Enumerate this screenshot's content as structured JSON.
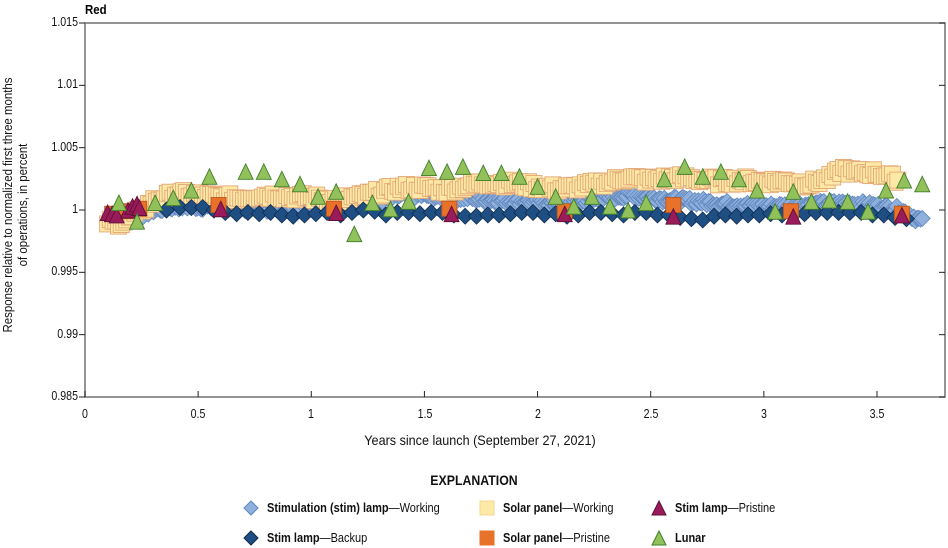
{
  "panel_title": "Red",
  "y_axis": {
    "label": "Response relative to normalized first three months of operations, in percent",
    "label_line1": "Response relative to normalized first three months",
    "label_line2": "of operations, in percent",
    "ticks": [
      "1.015",
      "1.01",
      "1.005",
      "1",
      "0.995",
      "0.99",
      "0.985"
    ]
  },
  "x_axis": {
    "label": "Years since launch (September 27, 2021)",
    "ticks": [
      "0",
      "0.5",
      "1",
      "1.5",
      "2",
      "2.5",
      "3",
      "3.5"
    ]
  },
  "legend": {
    "title": "EXPLANATION",
    "items": [
      {
        "bold": "Stimulation (stim) lamp",
        "rest": "—Working",
        "marker": "diamond",
        "color": "#8fb0dc",
        "stroke": "#5f86bd"
      },
      {
        "bold": "Stim lamp",
        "rest": "—Backup",
        "marker": "diamond",
        "color": "#1f4e82",
        "stroke": "#0d2a4c"
      },
      {
        "bold": "Solar panel",
        "rest": "—Working",
        "marker": "square",
        "color": "#fde9a6",
        "stroke": "#e3a777"
      },
      {
        "bold": "Solar panel",
        "rest": "—Pristine",
        "marker": "square",
        "color": "#e8722a",
        "stroke": "#c0561a"
      },
      {
        "bold": "Stim lamp",
        "rest": "—Pristine",
        "marker": "triangle",
        "color": "#9a1b5a",
        "stroke": "#5e0f37"
      },
      {
        "bold": "Lunar",
        "rest": "",
        "marker": "triangle",
        "color": "#92c05a",
        "stroke": "#3f7f2a"
      }
    ]
  },
  "chart_data": {
    "type": "scatter",
    "title": "Red",
    "xlabel": "Years since launch (September 27, 2021)",
    "ylabel": "Response relative to normalized first three months of operations, in percent",
    "xlim": [
      0,
      3.8
    ],
    "ylim": [
      0.985,
      1.015
    ],
    "x_ticks": [
      0,
      0.5,
      1,
      1.5,
      2,
      2.5,
      3,
      3.5
    ],
    "y_ticks": [
      0.985,
      0.99,
      0.995,
      1,
      1.005,
      1.01,
      1.015
    ],
    "grid": false,
    "legend_position": "bottom",
    "series": [
      {
        "name": "Stimulation (stim) lamp—Working",
        "marker": "diamond",
        "color": "#8fb0dc",
        "trend": [
          [
            0.1,
            0.999
          ],
          [
            0.2,
            0.9993
          ],
          [
            0.3,
            1.0
          ],
          [
            0.4,
            1.0003
          ],
          [
            0.5,
            1.0003
          ],
          [
            0.6,
            1.0002
          ],
          [
            0.7,
            1.0002
          ],
          [
            0.8,
            1.0001
          ],
          [
            0.9,
            1.0002
          ],
          [
            1.0,
            1.0003
          ],
          [
            1.1,
            1.0004
          ],
          [
            1.2,
            1.0004
          ],
          [
            1.3,
            1.0008
          ],
          [
            1.4,
            1.0012
          ],
          [
            1.5,
            1.0012
          ],
          [
            1.6,
            1.001
          ],
          [
            1.7,
            1.001
          ],
          [
            1.8,
            1.0008
          ],
          [
            1.9,
            1.0007
          ],
          [
            2.0,
            1.0006
          ],
          [
            2.1,
            1.0005
          ],
          [
            2.2,
            1.0007
          ],
          [
            2.3,
            1.001
          ],
          [
            2.4,
            1.0012
          ],
          [
            2.5,
            1.001
          ],
          [
            2.6,
            1.0008
          ],
          [
            2.7,
            1.0007
          ],
          [
            2.8,
            1.0005
          ],
          [
            2.9,
            1.0004
          ],
          [
            3.0,
            1.0003
          ],
          [
            3.1,
            1.0003
          ],
          [
            3.2,
            1.0004
          ],
          [
            3.3,
            1.0005
          ],
          [
            3.4,
            1.0005
          ],
          [
            3.5,
            1.0003
          ],
          [
            3.6,
            1.0
          ],
          [
            3.7,
            0.9991
          ]
        ]
      },
      {
        "name": "Stim lamp—Backup",
        "marker": "diamond",
        "color": "#1f4e82",
        "points": [
          [
            0.36,
            1.0
          ],
          [
            0.42,
            1.0002
          ],
          [
            0.47,
            1.0002
          ],
          [
            0.52,
            1.0002
          ],
          [
            0.57,
            1.0
          ],
          [
            0.62,
            0.9998
          ],
          [
            0.67,
            0.9997
          ],
          [
            0.72,
            0.9998
          ],
          [
            0.77,
            0.9997
          ],
          [
            0.82,
            0.9998
          ],
          [
            0.87,
            0.9996
          ],
          [
            0.92,
            0.9995
          ],
          [
            0.97,
            0.9996
          ],
          [
            1.02,
            0.9997
          ],
          [
            1.07,
            0.9998
          ],
          [
            1.13,
            0.9996
          ],
          [
            1.18,
            0.9998
          ],
          [
            1.23,
            1.0
          ],
          [
            1.28,
            0.9999
          ],
          [
            1.33,
            0.9996
          ],
          [
            1.38,
            0.9998
          ],
          [
            1.43,
            0.9998
          ],
          [
            1.48,
            0.9997
          ],
          [
            1.53,
            0.9998
          ],
          [
            1.58,
            0.9998
          ],
          [
            1.63,
            0.9996
          ],
          [
            1.68,
            0.9995
          ],
          [
            1.73,
            0.9995
          ],
          [
            1.78,
            0.9996
          ],
          [
            1.83,
            0.9996
          ],
          [
            1.88,
            0.9997
          ],
          [
            1.93,
            0.9998
          ],
          [
            1.98,
            0.9998
          ],
          [
            2.03,
            0.9996
          ],
          [
            2.08,
            0.9997
          ],
          [
            2.13,
            0.9995
          ],
          [
            2.18,
            0.9996
          ],
          [
            2.23,
            0.9998
          ],
          [
            2.28,
            0.9998
          ],
          [
            2.33,
            0.9997
          ],
          [
            2.38,
            0.9996
          ],
          [
            2.43,
            0.9998
          ],
          [
            2.48,
            0.9998
          ],
          [
            2.53,
            0.9996
          ],
          [
            2.58,
            0.9996
          ],
          [
            2.63,
            0.9994
          ],
          [
            2.68,
            0.9993
          ],
          [
            2.73,
            0.9992
          ],
          [
            2.78,
            0.9995
          ],
          [
            2.83,
            0.9996
          ],
          [
            2.88,
            0.9995
          ],
          [
            2.93,
            0.9996
          ],
          [
            2.98,
            0.9996
          ],
          [
            3.03,
            0.9997
          ],
          [
            3.08,
            0.9996
          ],
          [
            3.13,
            0.9996
          ],
          [
            3.18,
            0.9997
          ],
          [
            3.23,
            0.9998
          ],
          [
            3.28,
            0.9998
          ],
          [
            3.33,
            0.9998
          ],
          [
            3.38,
            0.9998
          ],
          [
            3.43,
            0.9998
          ],
          [
            3.48,
            0.9996
          ],
          [
            3.53,
            0.9996
          ],
          [
            3.58,
            0.9994
          ],
          [
            3.63,
            0.9993
          ]
        ]
      },
      {
        "name": "Solar panel—Working",
        "marker": "square",
        "color": "#fde9a6",
        "trend": [
          [
            0.1,
            0.999
          ],
          [
            0.15,
            0.999
          ],
          [
            0.2,
            0.9993
          ],
          [
            0.25,
            1.0
          ],
          [
            0.3,
            1.0007
          ],
          [
            0.35,
            1.001
          ],
          [
            0.4,
            1.0013
          ],
          [
            0.5,
            1.0012
          ],
          [
            0.6,
            1.001
          ],
          [
            0.7,
            1.001
          ],
          [
            0.8,
            1.0012
          ],
          [
            0.9,
            1.0011
          ],
          [
            1.0,
            1.001
          ],
          [
            1.1,
            1.0008
          ],
          [
            1.2,
            1.001
          ],
          [
            1.3,
            1.0014
          ],
          [
            1.4,
            1.0018
          ],
          [
            1.5,
            1.0018
          ],
          [
            1.6,
            1.0016
          ],
          [
            1.7,
            1.002
          ],
          [
            1.8,
            1.0022
          ],
          [
            1.9,
            1.0021
          ],
          [
            2.0,
            1.0019
          ],
          [
            2.1,
            1.0017
          ],
          [
            2.2,
            1.0019
          ],
          [
            2.3,
            1.0022
          ],
          [
            2.4,
            1.0026
          ],
          [
            2.5,
            1.0024
          ],
          [
            2.6,
            1.0026
          ],
          [
            2.7,
            1.0025
          ],
          [
            2.8,
            1.0023
          ],
          [
            2.9,
            1.0024
          ],
          [
            3.0,
            1.0023
          ],
          [
            3.1,
            1.0023
          ],
          [
            3.2,
            1.0021
          ],
          [
            3.3,
            1.0026
          ],
          [
            3.35,
            1.0033
          ],
          [
            3.4,
            1.003
          ],
          [
            3.5,
            1.003
          ],
          [
            3.6,
            1.0024
          ]
        ]
      },
      {
        "name": "Solar panel—Pristine",
        "marker": "square",
        "color": "#e8722a",
        "points": [
          [
            0.12,
            0.9997
          ],
          [
            0.18,
            0.9999
          ],
          [
            0.24,
            1.0001
          ],
          [
            0.59,
            1.0004
          ],
          [
            1.1,
            1.0001
          ],
          [
            1.61,
            1.0001
          ],
          [
            2.12,
            0.9999
          ],
          [
            2.6,
            1.0004
          ],
          [
            3.12,
            0.9999
          ],
          [
            3.61,
            0.9997
          ]
        ]
      },
      {
        "name": "Stim lamp—Pristine",
        "marker": "triangle",
        "color": "#9a1b5a",
        "points": [
          [
            0.1,
            0.9997
          ],
          [
            0.12,
            0.9996
          ],
          [
            0.14,
            0.9995
          ],
          [
            0.19,
            0.9999
          ],
          [
            0.21,
            1.0002
          ],
          [
            0.23,
            1.0004
          ],
          [
            0.24,
            1.0001
          ],
          [
            0.6,
            1.0
          ],
          [
            1.11,
            0.9997
          ],
          [
            1.62,
            0.9996
          ],
          [
            2.12,
            0.9996
          ],
          [
            2.6,
            0.9994
          ],
          [
            3.13,
            0.9994
          ],
          [
            3.61,
            0.9995
          ]
        ]
      },
      {
        "name": "Lunar",
        "marker": "triangle",
        "color": "#92c05a",
        "points": [
          [
            0.15,
            1.0005
          ],
          [
            0.23,
            0.999
          ],
          [
            0.31,
            1.0005
          ],
          [
            0.39,
            1.0009
          ],
          [
            0.47,
            1.0015
          ],
          [
            0.55,
            1.0026
          ],
          [
            0.71,
            1.003
          ],
          [
            0.79,
            1.003
          ],
          [
            0.87,
            1.0024
          ],
          [
            0.95,
            1.002
          ],
          [
            1.03,
            1.001
          ],
          [
            1.11,
            1.0014
          ],
          [
            1.19,
            0.998
          ],
          [
            1.27,
            1.0005
          ],
          [
            1.35,
            1.0
          ],
          [
            1.43,
            1.0006
          ],
          [
            1.52,
            1.0033
          ],
          [
            1.6,
            1.003
          ],
          [
            1.67,
            1.0034
          ],
          [
            1.76,
            1.0029
          ],
          [
            1.84,
            1.0029
          ],
          [
            1.92,
            1.0026
          ],
          [
            2.0,
            1.0018
          ],
          [
            2.08,
            1.001
          ],
          [
            2.16,
            1.0002
          ],
          [
            2.24,
            1.001
          ],
          [
            2.32,
            1.0002
          ],
          [
            2.4,
            0.9999
          ],
          [
            2.48,
            1.0005
          ],
          [
            2.56,
            1.0024
          ],
          [
            2.65,
            1.0034
          ],
          [
            2.73,
            1.0026
          ],
          [
            2.81,
            1.003
          ],
          [
            2.89,
            1.0024
          ],
          [
            2.97,
            1.0015
          ],
          [
            3.05,
            0.9998
          ],
          [
            3.13,
            1.0014
          ],
          [
            3.21,
            1.0006
          ],
          [
            3.29,
            1.0007
          ],
          [
            3.37,
            1.0006
          ],
          [
            3.46,
            0.9998
          ],
          [
            3.54,
            1.0015
          ],
          [
            3.62,
            1.0023
          ],
          [
            3.7,
            1.002
          ]
        ]
      }
    ]
  }
}
